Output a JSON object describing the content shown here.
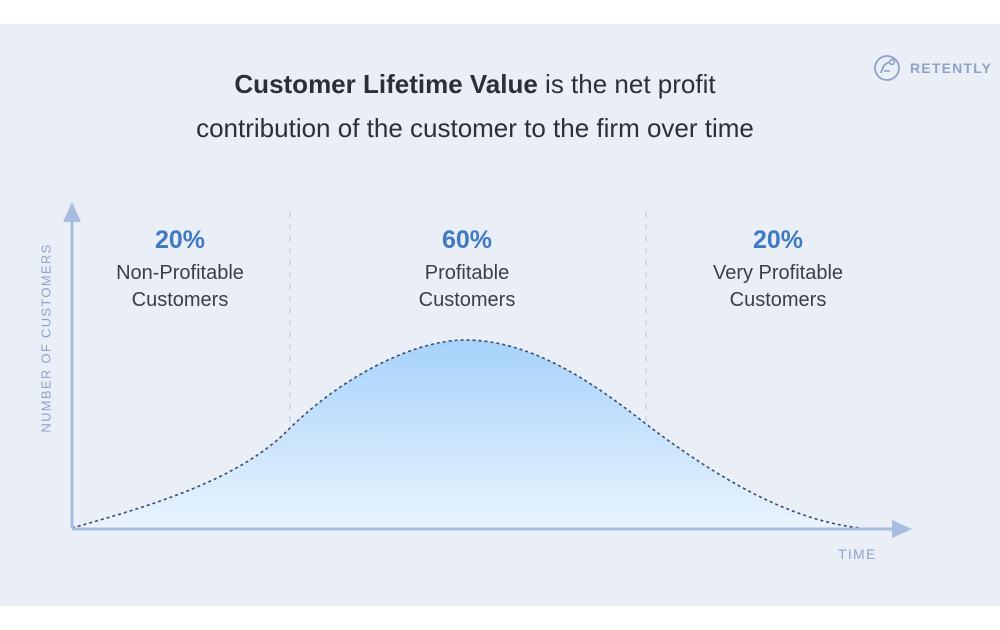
{
  "title": {
    "bold": "Customer Lifetime Value",
    "line1_rest": " is the net profit",
    "line2": "contribution of the customer to the firm over time"
  },
  "logo": {
    "text": "RETENTLY"
  },
  "axes": {
    "y_label": "NUMBER OF CUSTOMERS",
    "x_label": "TIME"
  },
  "segments": [
    {
      "percent": "20%",
      "label_line1": "Non-Profitable",
      "label_line2": "Customers"
    },
    {
      "percent": "60%",
      "label_line1": "Profitable",
      "label_line2": "Customers"
    },
    {
      "percent": "20%",
      "label_line1": "Very Profitable",
      "label_line2": "Customers"
    }
  ],
  "colors": {
    "panel_bg": "#e9eef7",
    "axis": "#a9bde0",
    "percent": "#3f7ac4",
    "curve_fill_top": "#a6d2fb",
    "curve_fill_bottom": "#e8f3fe",
    "curve_stroke": "#3a4d6b"
  },
  "chart_data": {
    "type": "area",
    "shape": "bell-curve",
    "segment_shares": [
      20,
      60,
      20
    ]
  }
}
